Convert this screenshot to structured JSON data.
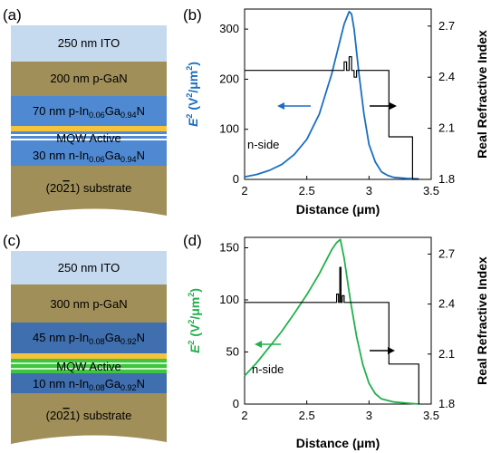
{
  "panels": {
    "a": "(a)",
    "b": "(b)",
    "c": "(c)",
    "d": "(d)"
  },
  "stack_a": {
    "ito": "250 nm ITO",
    "pgan": "200 nm p-GaN",
    "pingan_prefix": "70 nm p-In",
    "pingan_in_sub": "0.06",
    "pingan_ga": "Ga",
    "pingan_ga_sub": "0.94",
    "pingan_n": "N",
    "mqw": "MQW Active",
    "ningan_prefix": "30 nm n-In",
    "ningan_in_sub": "0.06",
    "ningan_ga": "Ga",
    "ningan_ga_sub": "0.94",
    "ningan_n": "N",
    "substrate_pre": "(20",
    "substrate_bar": "2",
    "substrate_post": "1) substrate"
  },
  "stack_c": {
    "ito": "250 nm ITO",
    "pgan": "300 nm p-GaN",
    "pingan_prefix": "45 nm p-In",
    "pingan_in_sub": "0.08",
    "pingan_ga": "Ga",
    "pingan_ga_sub": "0.92",
    "pingan_n": "N",
    "mqw": "MQW Active",
    "ningan_prefix": "10 nm n-In",
    "ningan_in_sub": "0.08",
    "ningan_ga": "Ga",
    "ningan_ga_sub": "0.92",
    "ningan_n": "N",
    "substrate_pre": "(20",
    "substrate_bar": "2",
    "substrate_post": "1) substrate"
  },
  "colors": {
    "ito": "#c5d9ef",
    "gan": "#a08f59",
    "ingan_a": "#4f89d2",
    "ingan_c": "#3f6faf",
    "mqw_gold": "#f5c43b",
    "mqw_green": "#3ec43e",
    "curve_blue": "#1a6fc0",
    "curve_green": "#22b14c"
  },
  "chart_data": [
    {
      "type": "line",
      "panel": "(b)",
      "xlabel": "Distance (μm)",
      "ylabel_left": "E² (V²/μm²)",
      "ylabel_left_main": "E",
      "ylabel_left_rest": " (V",
      "ylabel_left_mid": "/μm",
      "ylabel_left_end": ")",
      "ylabel_right": "Real Refractive Index",
      "xlim": [
        2,
        3.5
      ],
      "ylim_left": [
        0,
        340
      ],
      "ylim_right": [
        1.8,
        2.8
      ],
      "xticks": [
        "2",
        "2.5",
        "3",
        "3.5"
      ],
      "yticks_left": [
        "0",
        "100",
        "200",
        "300"
      ],
      "yticks_right": [
        "1.8",
        "2.1",
        "2.4",
        "2.7"
      ],
      "annotation": "n-side",
      "series": [
        {
          "axis": "left",
          "color": "#1a6fc0",
          "x": [
            2.0,
            2.1,
            2.2,
            2.3,
            2.4,
            2.5,
            2.6,
            2.7,
            2.75,
            2.8,
            2.84,
            2.86,
            2.88,
            2.92,
            2.96,
            3.0,
            3.05,
            3.1,
            3.15,
            3.2,
            3.3,
            3.4
          ],
          "y": [
            5,
            10,
            18,
            30,
            50,
            80,
            130,
            210,
            260,
            310,
            335,
            330,
            300,
            210,
            130,
            70,
            35,
            15,
            8,
            4,
            2,
            1
          ]
        },
        {
          "axis": "right",
          "color": "#000000",
          "x": [
            2.0,
            2.8,
            2.8,
            2.82,
            2.82,
            2.84,
            2.84,
            2.86,
            2.86,
            2.88,
            2.88,
            2.9,
            2.9,
            3.16,
            3.16,
            3.35,
            3.35,
            3.4
          ],
          "y": [
            2.44,
            2.44,
            2.49,
            2.49,
            2.44,
            2.44,
            2.52,
            2.52,
            2.44,
            2.44,
            2.4,
            2.4,
            2.44,
            2.44,
            2.05,
            2.05,
            1.8,
            1.8
          ]
        }
      ]
    },
    {
      "type": "line",
      "panel": "(d)",
      "xlabel": "Distance (μm)",
      "ylabel_left": "E² (V²/μm²)",
      "ylabel_left_main": "E",
      "ylabel_left_rest": " (V",
      "ylabel_left_mid": "/μm",
      "ylabel_left_end": ")",
      "ylabel_right": "Real Refractive Index",
      "xlim": [
        2,
        3.5
      ],
      "ylim_left": [
        0,
        160
      ],
      "ylim_right": [
        1.8,
        2.8
      ],
      "xticks": [
        "2",
        "2.5",
        "3",
        "3.5"
      ],
      "yticks_left": [
        "0",
        "50",
        "100",
        "150"
      ],
      "yticks_right": [
        "1.8",
        "2.1",
        "2.4",
        "2.7"
      ],
      "annotation": "n-side",
      "series": [
        {
          "axis": "left",
          "color": "#22b14c",
          "x": [
            2.0,
            2.1,
            2.2,
            2.3,
            2.4,
            2.5,
            2.6,
            2.7,
            2.74,
            2.77,
            2.8,
            2.85,
            2.9,
            2.95,
            3.0,
            3.05,
            3.1,
            3.2,
            3.3,
            3.4
          ],
          "y": [
            27,
            40,
            55,
            70,
            87,
            105,
            125,
            148,
            155,
            158,
            140,
            100,
            65,
            38,
            20,
            10,
            5,
            2,
            1,
            0
          ]
        },
        {
          "axis": "right",
          "color": "#000000",
          "x": [
            2.0,
            2.74,
            2.74,
            2.755,
            2.755,
            2.765,
            2.765,
            2.775,
            2.775,
            2.785,
            2.785,
            2.8,
            2.8,
            3.16,
            3.16,
            3.4,
            3.4
          ],
          "y": [
            2.41,
            2.41,
            2.46,
            2.46,
            2.41,
            2.41,
            2.62,
            2.62,
            2.41,
            2.41,
            2.45,
            2.45,
            2.41,
            2.41,
            2.04,
            2.04,
            1.8
          ]
        }
      ]
    }
  ]
}
